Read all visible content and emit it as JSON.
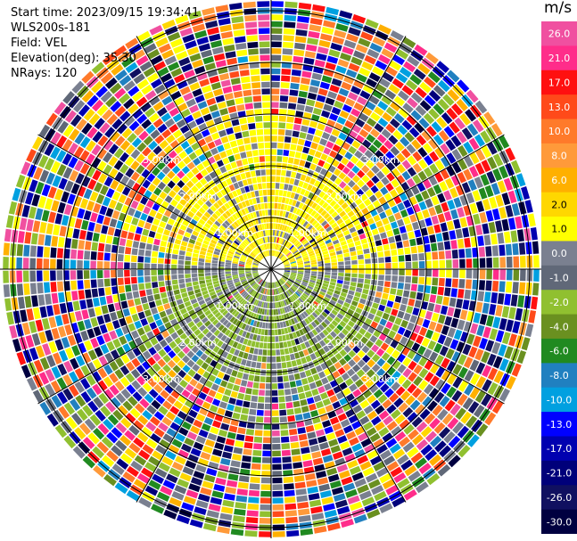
{
  "info": {
    "start_time": "Start time: 2023/09/15 19:34:41",
    "device": "WLS200s-181",
    "field": "Field: VEL",
    "elevation": "Elevation(deg): 35.30",
    "nrays": "NRays: 120"
  },
  "colorbar": {
    "unit": "m/s",
    "ticks": [
      "26.0",
      "21.0",
      "17.0",
      "13.0",
      "10.0",
      "8.0",
      "6.0",
      "2.0",
      "1.0",
      "0.0",
      "-1.0",
      "-2.0",
      "-4.0",
      "-6.0",
      "-8.0",
      "-10.0",
      "-13.0",
      "-17.0",
      "-21.0",
      "-26.0",
      "-30.0"
    ],
    "colors": [
      "#f050a0",
      "#ff2d8a",
      "#ff1010",
      "#ff4a1a",
      "#ff7a2a",
      "#ff9a3a",
      "#ffb000",
      "#ffd700",
      "#ffff00",
      "#7a8090",
      "#606878",
      "#90c030",
      "#6a9020",
      "#208a20",
      "#2080c0",
      "#00a0e0",
      "#0000ff",
      "#0000b0",
      "#00007a",
      "#101060",
      "#000040"
    ]
  },
  "chart_data": {
    "type": "ppi",
    "field": "VEL",
    "range_ring_labels": [
      "1.00km",
      "2.00km",
      "3.00km"
    ],
    "range_rings_km": [
      1,
      2,
      3,
      4,
      5
    ],
    "nrays": 120,
    "elevation_deg": 35.3,
    "pattern": {
      "north_sector_near": "positive velocity (yellow, ~1 to 6 m/s)",
      "south_sector_near": "negative velocity (green, ~-1 to -4 m/s)",
      "far_range": "noise (all colors)"
    }
  }
}
